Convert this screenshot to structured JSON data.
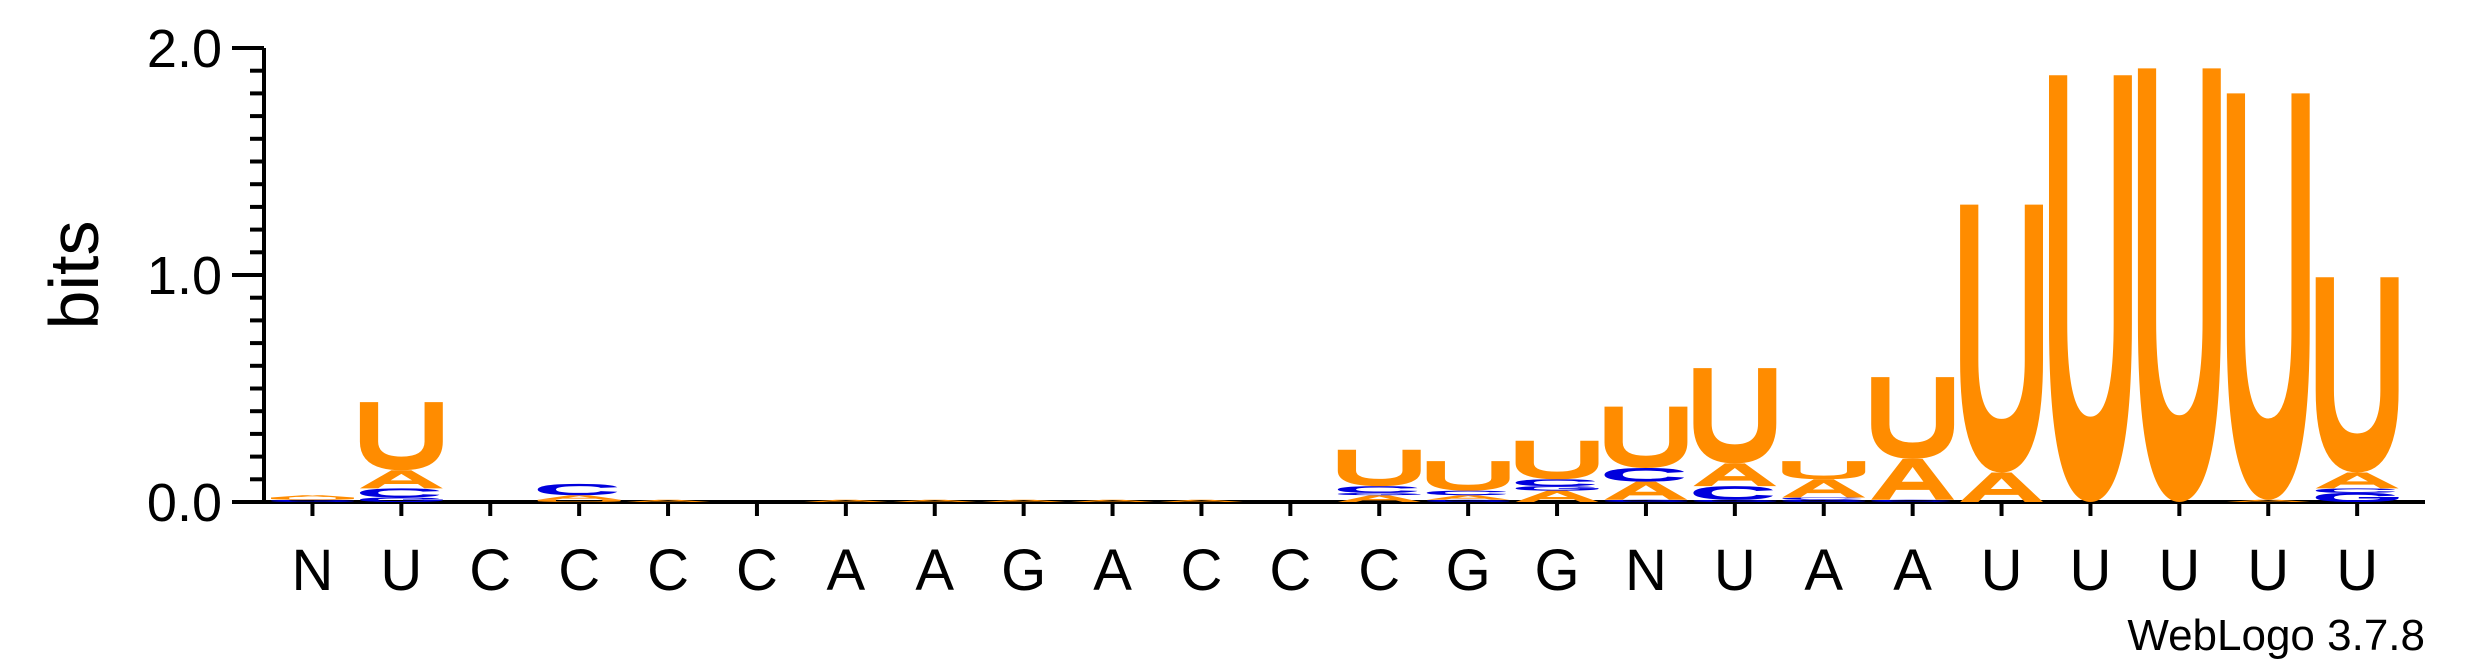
{
  "chart_data": {
    "type": "sequence-logo",
    "ylabel": "bits",
    "ylim": [
      0,
      2.0
    ],
    "yticks": [
      {
        "value": 0.0,
        "label": "0.0"
      },
      {
        "value": 1.0,
        "label": "1.0"
      },
      {
        "value": 2.0,
        "label": "2.0"
      }
    ],
    "credit": "WebLogo 3.7.8",
    "colors": {
      "U": "#FF8C00",
      "A": "#FF8C00",
      "C": "#0000DD",
      "G": "#0000DD"
    },
    "positions": [
      {
        "label": "N",
        "stack": [
          {
            "letter": "G",
            "bits": 0.01
          },
          {
            "letter": "U",
            "bits": 0.01
          },
          {
            "letter": "A",
            "bits": 0.01
          }
        ]
      },
      {
        "label": "U",
        "stack": [
          {
            "letter": "G",
            "bits": 0.02
          },
          {
            "letter": "C",
            "bits": 0.04
          },
          {
            "letter": "A",
            "bits": 0.08
          },
          {
            "letter": "U",
            "bits": 0.3
          }
        ]
      },
      {
        "label": "C",
        "stack": []
      },
      {
        "label": "C",
        "stack": [
          {
            "letter": "U",
            "bits": 0.01
          },
          {
            "letter": "A",
            "bits": 0.02
          },
          {
            "letter": "C",
            "bits": 0.05
          }
        ]
      },
      {
        "label": "C",
        "stack": [
          {
            "letter": "A",
            "bits": 0.01
          }
        ]
      },
      {
        "label": "C",
        "stack": []
      },
      {
        "label": "A",
        "stack": [
          {
            "letter": "A",
            "bits": 0.01
          }
        ]
      },
      {
        "label": "A",
        "stack": [
          {
            "letter": "A",
            "bits": 0.01
          }
        ]
      },
      {
        "label": "G",
        "stack": [
          {
            "letter": "A",
            "bits": 0.01
          }
        ]
      },
      {
        "label": "A",
        "stack": [
          {
            "letter": "A",
            "bits": 0.01
          }
        ]
      },
      {
        "label": "C",
        "stack": [
          {
            "letter": "A",
            "bits": 0.01
          }
        ]
      },
      {
        "label": "C",
        "stack": []
      },
      {
        "label": "C",
        "stack": [
          {
            "letter": "A",
            "bits": 0.03
          },
          {
            "letter": "G",
            "bits": 0.01
          },
          {
            "letter": "C",
            "bits": 0.03
          },
          {
            "letter": "U",
            "bits": 0.16
          }
        ]
      },
      {
        "label": "G",
        "stack": [
          {
            "letter": "G",
            "bits": 0.01
          },
          {
            "letter": "A",
            "bits": 0.02
          },
          {
            "letter": "C",
            "bits": 0.02
          },
          {
            "letter": "U",
            "bits": 0.13
          }
        ]
      },
      {
        "label": "G",
        "stack": [
          {
            "letter": "A",
            "bits": 0.05
          },
          {
            "letter": "G",
            "bits": 0.02
          },
          {
            "letter": "C",
            "bits": 0.03
          },
          {
            "letter": "U",
            "bits": 0.17
          }
        ]
      },
      {
        "label": "N",
        "stack": [
          {
            "letter": "G",
            "bits": 0.01
          },
          {
            "letter": "A",
            "bits": 0.08
          },
          {
            "letter": "C",
            "bits": 0.06
          },
          {
            "letter": "U",
            "bits": 0.27
          }
        ]
      },
      {
        "label": "U",
        "stack": [
          {
            "letter": "G",
            "bits": 0.01
          },
          {
            "letter": "C",
            "bits": 0.06
          },
          {
            "letter": "A",
            "bits": 0.1
          },
          {
            "letter": "U",
            "bits": 0.42
          }
        ]
      },
      {
        "label": "A",
        "stack": [
          {
            "letter": "G",
            "bits": 0.01
          },
          {
            "letter": "C",
            "bits": 0.01
          },
          {
            "letter": "A",
            "bits": 0.08
          },
          {
            "letter": "U",
            "bits": 0.08
          }
        ]
      },
      {
        "label": "A",
        "stack": [
          {
            "letter": "C",
            "bits": 0.01
          },
          {
            "letter": "A",
            "bits": 0.18
          },
          {
            "letter": "U",
            "bits": 0.36
          }
        ]
      },
      {
        "label": "U",
        "stack": [
          {
            "letter": "A",
            "bits": 0.13
          },
          {
            "letter": "U",
            "bits": 1.18
          }
        ]
      },
      {
        "label": "U",
        "stack": [
          {
            "letter": "U",
            "bits": 1.88
          }
        ]
      },
      {
        "label": "U",
        "stack": [
          {
            "letter": "U",
            "bits": 1.91
          }
        ]
      },
      {
        "label": "U",
        "stack": [
          {
            "letter": "A",
            "bits": 0.01
          },
          {
            "letter": "U",
            "bits": 1.79
          }
        ]
      },
      {
        "label": "U",
        "stack": [
          {
            "letter": "G",
            "bits": 0.04
          },
          {
            "letter": "C",
            "bits": 0.02
          },
          {
            "letter": "A",
            "bits": 0.07
          },
          {
            "letter": "U",
            "bits": 0.86
          }
        ]
      }
    ]
  }
}
